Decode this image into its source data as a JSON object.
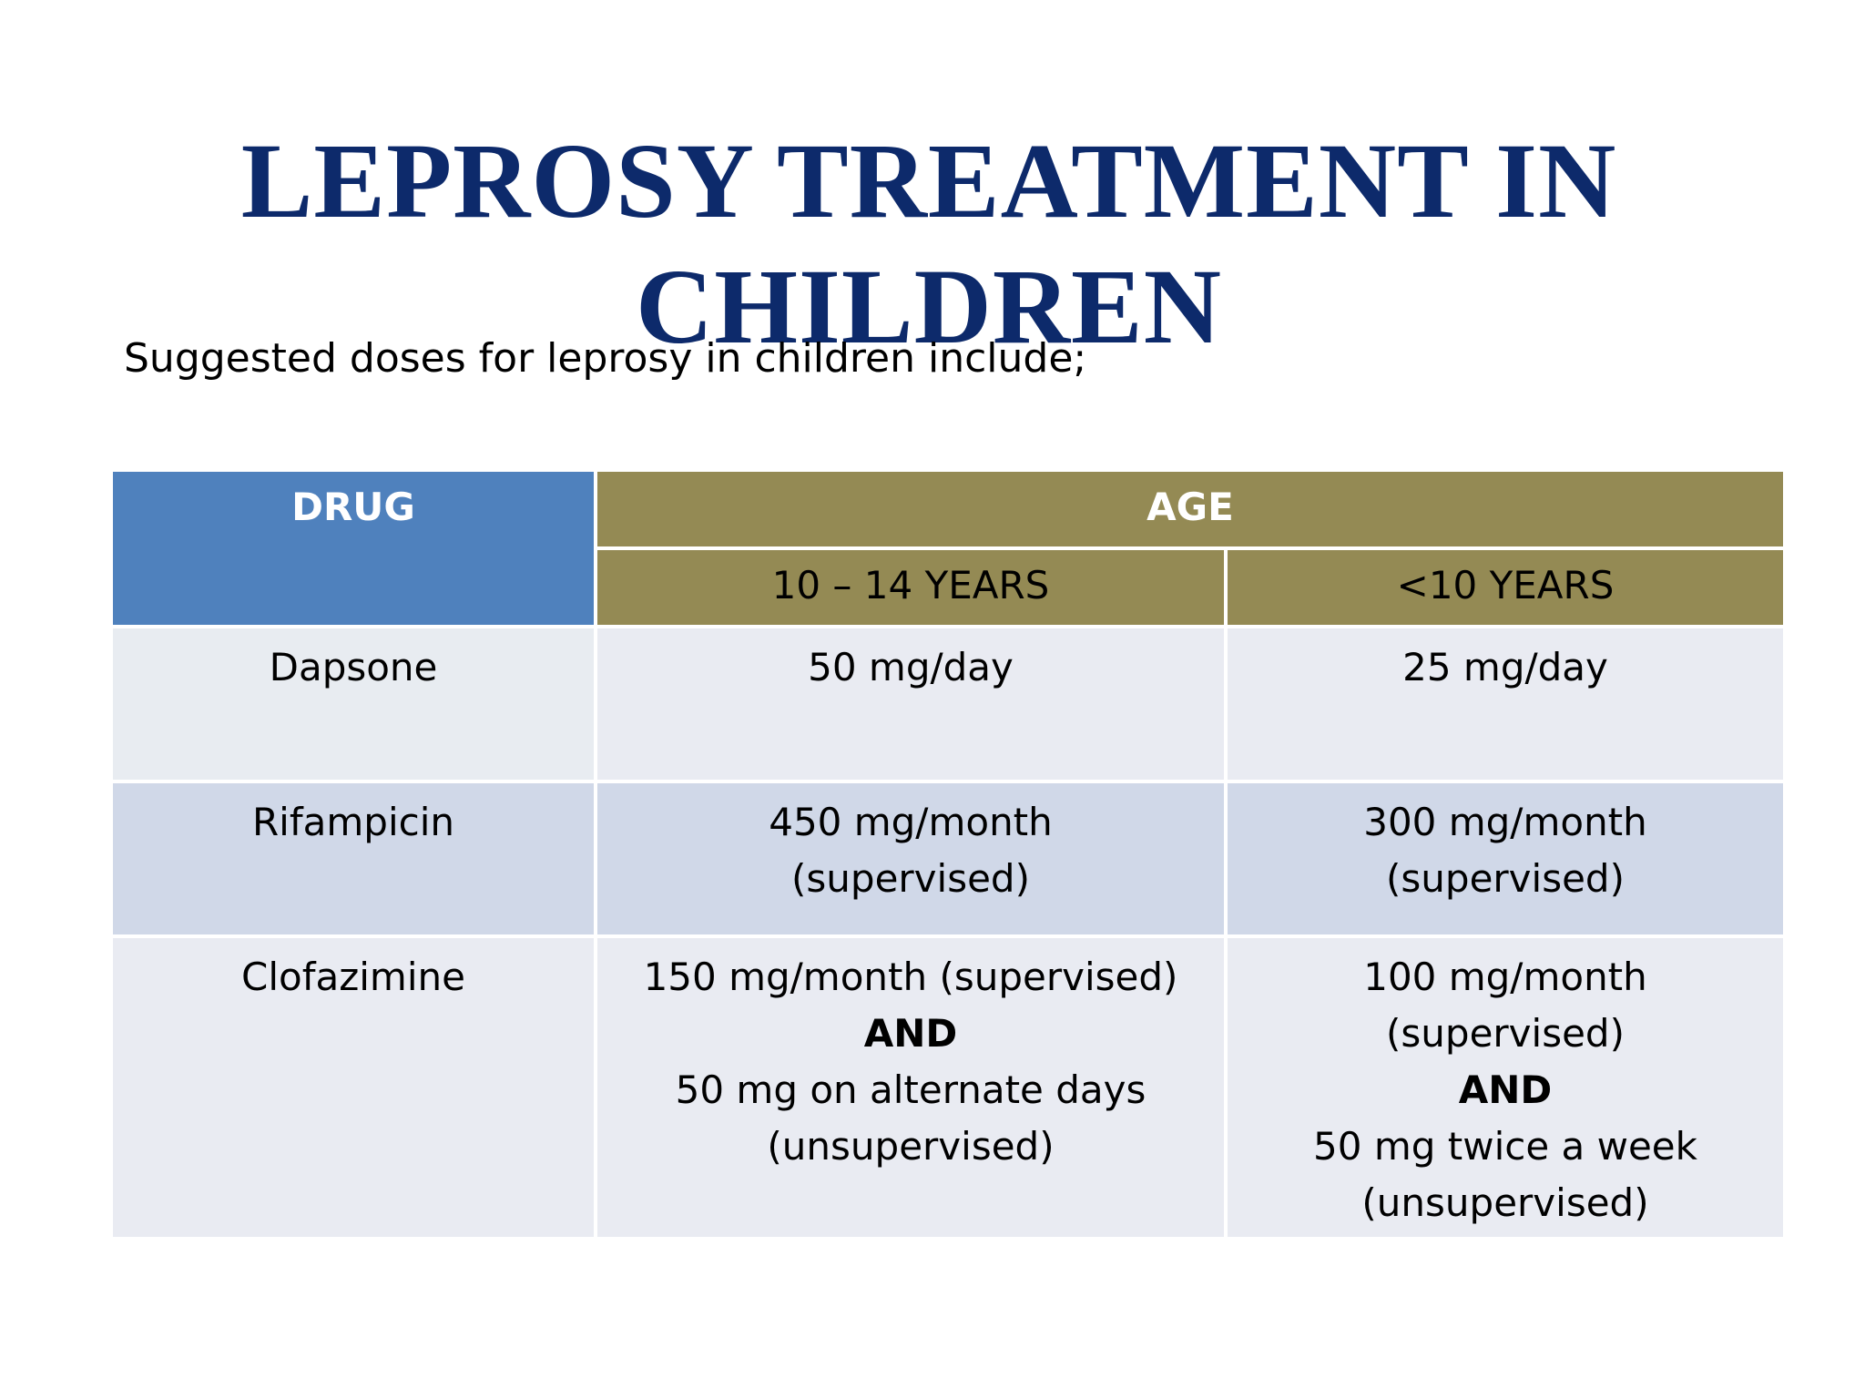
{
  "slide": {
    "title_line1": "LEPROSY TREATMENT IN",
    "title_line2": "CHILDREN",
    "subtitle": "Suggested doses for leprosy in children include;"
  },
  "table": {
    "header_drug": "DRUG",
    "header_age": "AGE",
    "header_age_group_1": "10 – 14 YEARS",
    "header_age_group_2": "<10 YEARS",
    "rows": [
      {
        "drug": "Dapsone",
        "age_10_14": [
          "50 mg/day"
        ],
        "age_under_10": [
          "25 mg/day"
        ]
      },
      {
        "drug": "Rifampicin",
        "age_10_14": [
          "450 mg/month",
          "(supervised)"
        ],
        "age_under_10": [
          "300 mg/month",
          "(supervised)"
        ]
      },
      {
        "drug": "Clofazimine",
        "age_10_14": [
          "150 mg/month (supervised)",
          "AND",
          "50 mg on alternate days",
          "(unsupervised)"
        ],
        "age_under_10": [
          "100 mg/month",
          "(supervised)",
          "AND",
          "50 mg twice a week",
          "(unsupervised)"
        ]
      }
    ]
  },
  "colors": {
    "title": "#0d2a6b",
    "drug_header": "#4f81bd",
    "age_header": "#948a54",
    "row_light": "#e9ebf2",
    "row_dark": "#d0d8e8"
  }
}
